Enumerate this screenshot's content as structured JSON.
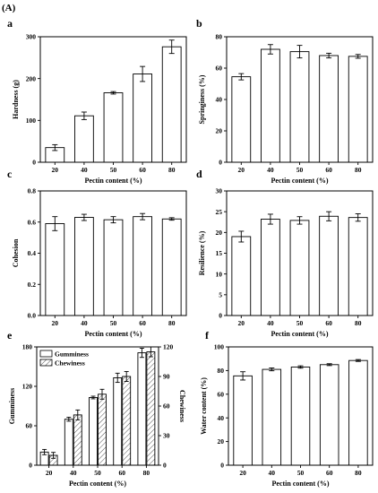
{
  "figure_label": "(A)",
  "chart_data": [
    {
      "panel": "a",
      "type": "bar",
      "categories": [
        "20",
        "40",
        "50",
        "60",
        "80"
      ],
      "values": [
        35,
        111,
        166,
        211,
        276
      ],
      "errors": [
        7,
        9,
        3,
        18,
        16
      ],
      "xlabel": "Pectin content (%)",
      "ylabel": "Hardness (g)",
      "ylim": [
        0,
        300
      ],
      "yticks": [
        "0",
        "100",
        "200",
        "300"
      ],
      "grid": false
    },
    {
      "panel": "b",
      "type": "bar",
      "categories": [
        "20",
        "40",
        "50",
        "60",
        "80"
      ],
      "values": [
        54.5,
        72,
        70.5,
        68,
        67.5
      ],
      "errors": [
        2,
        3,
        4,
        1.5,
        1.2
      ],
      "xlabel": "Pectin content (%)",
      "ylabel": "Springiness (%)",
      "ylim": [
        0,
        80
      ],
      "yticks": [
        "0",
        "20",
        "40",
        "60",
        "80"
      ],
      "grid": false
    },
    {
      "panel": "c",
      "type": "bar",
      "categories": [
        "20",
        "40",
        "50",
        "60",
        "80"
      ],
      "values": [
        0.59,
        0.63,
        0.615,
        0.635,
        0.62
      ],
      "errors": [
        0.045,
        0.02,
        0.02,
        0.02,
        0.008
      ],
      "xlabel": "Pectin content (%)",
      "ylabel": "Cohesion",
      "ylim": [
        0,
        0.8
      ],
      "yticks": [
        "0.0",
        "0.2",
        "0.4",
        "0.6",
        "0.8"
      ],
      "grid": false
    },
    {
      "panel": "d",
      "type": "bar",
      "categories": [
        "20",
        "40",
        "50",
        "60",
        "80"
      ],
      "values": [
        19,
        23.2,
        22.9,
        23.9,
        23.6
      ],
      "errors": [
        1.3,
        1.2,
        0.9,
        1.1,
        0.9
      ],
      "xlabel": "Pectin content (%)",
      "ylabel": "Resilience (%)",
      "ylim": [
        0,
        30
      ],
      "yticks": [
        "0",
        "5",
        "10",
        "15",
        "20",
        "25",
        "30"
      ],
      "grid": false
    },
    {
      "panel": "e",
      "type": "bar",
      "categories": [
        "20",
        "40",
        "50",
        "60",
        "80"
      ],
      "series": [
        {
          "name": "Gumminess",
          "axis": "left",
          "values": [
            20,
            70,
            103,
            133,
            171
          ],
          "errors": [
            4,
            3,
            2,
            7,
            7
          ],
          "pattern": "none"
        },
        {
          "name": "Chewiness",
          "axis": "right",
          "values": [
            10,
            51,
            72,
            90,
            115
          ],
          "errors": [
            3,
            5,
            5,
            5,
            5
          ],
          "pattern": "hatch"
        }
      ],
      "xlabel": "Pectin content (%)",
      "ylabel": "Gumminess",
      "y2label": "Chewiness",
      "ylim": [
        0,
        180
      ],
      "y2lim": [
        0,
        120
      ],
      "yticks": [
        "0",
        "60",
        "120",
        "180"
      ],
      "y2ticks": [
        "0",
        "30",
        "60",
        "90",
        "120"
      ],
      "legend": "top-left",
      "grid": false
    },
    {
      "panel": "f",
      "type": "bar",
      "categories": [
        "20",
        "40",
        "50",
        "60",
        "80"
      ],
      "values": [
        75.5,
        81,
        83,
        85,
        88.5
      ],
      "errors": [
        3.5,
        1.2,
        1,
        0.8,
        0.8
      ],
      "xlabel": "Pectin content (%)",
      "ylabel": "Water content (%)",
      "ylim": [
        0,
        100
      ],
      "yticks": [
        "0",
        "20",
        "40",
        "60",
        "80",
        "100"
      ],
      "grid": false
    }
  ]
}
